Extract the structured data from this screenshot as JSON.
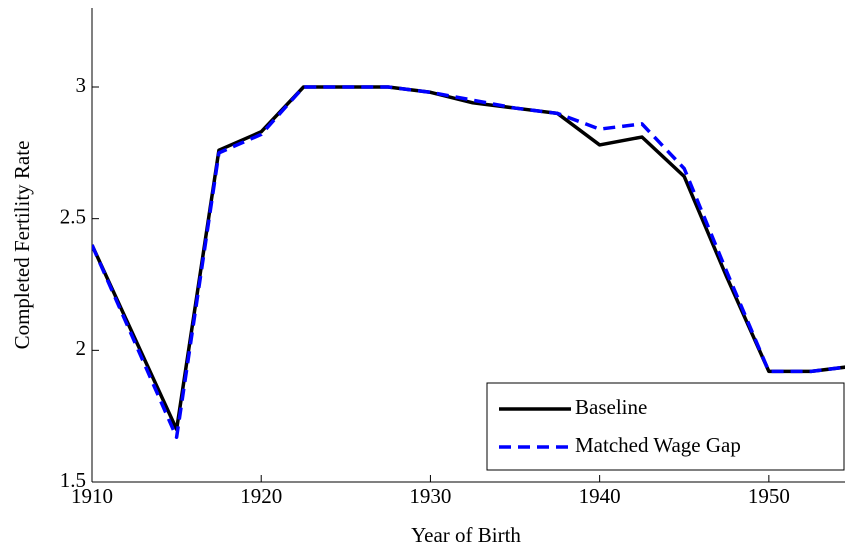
{
  "chart_data": {
    "type": "line",
    "xlabel": "Year of Birth",
    "ylabel": "Completed Fertility Rate",
    "x": [
      1910,
      1915,
      1917.5,
      1920,
      1922.5,
      1925,
      1927.5,
      1930,
      1932.5,
      1935,
      1937.5,
      1940,
      1942.5,
      1945,
      1947.5,
      1950,
      1952.5,
      1955
    ],
    "series": [
      {
        "name": "Baseline",
        "color": "#000000",
        "dash": false,
        "values": [
          2.4,
          1.7,
          2.76,
          2.83,
          3.0,
          3.0,
          3.0,
          2.98,
          2.94,
          2.92,
          2.9,
          2.78,
          2.81,
          2.66,
          2.28,
          1.92,
          1.92,
          1.94
        ]
      },
      {
        "name": "Matched Wage Gap",
        "color": "#0000ff",
        "dash": true,
        "values": [
          2.4,
          1.67,
          2.75,
          2.82,
          3.0,
          3.0,
          3.0,
          2.98,
          2.95,
          2.92,
          2.9,
          2.84,
          2.86,
          2.69,
          2.3,
          1.92,
          1.92,
          1.94
        ]
      }
    ],
    "xlim": [
      1910,
      1954.5
    ],
    "xticks": [
      1910,
      1920,
      1930,
      1940,
      1950
    ],
    "ylim": [
      1.5,
      3.3
    ],
    "yticks": [
      1.5,
      2,
      2.5,
      3
    ],
    "legend": "lower right",
    "grid": false
  }
}
